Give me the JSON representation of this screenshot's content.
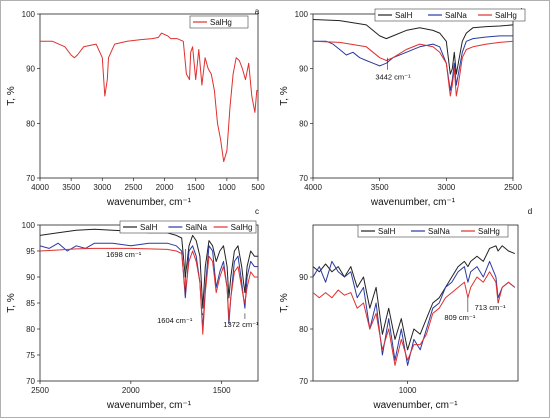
{
  "chart_data": [
    {
      "id": "a",
      "type": "line",
      "panel_letter": "a",
      "xlabel": "wavenumber, cm⁻¹",
      "ylabel": "T, %",
      "xlim": [
        4000,
        500
      ],
      "ylim": [
        70,
        100
      ],
      "xticks": [
        4000,
        3500,
        3000,
        2500,
        2000,
        1500,
        1000,
        500
      ],
      "yticks": [
        70,
        80,
        90,
        100
      ],
      "legend": "top-right",
      "series": [
        {
          "name": "SalHg",
          "color": "#e03030",
          "x": [
            4000,
            3800,
            3600,
            3500,
            3450,
            3400,
            3300,
            3100,
            3000,
            2960,
            2920,
            2900,
            2800,
            2600,
            2400,
            2200,
            2100,
            2050,
            1950,
            1900,
            1800,
            1700,
            1650,
            1600,
            1580,
            1550,
            1500,
            1450,
            1400,
            1350,
            1300,
            1250,
            1200,
            1150,
            1100,
            1050,
            1000,
            950,
            900,
            850,
            800,
            750,
            700,
            650,
            600,
            550,
            520,
            500
          ],
          "y": [
            95,
            95,
            94,
            92.5,
            92,
            92.5,
            94,
            94.5,
            92,
            85,
            88,
            92,
            94.5,
            95,
            95.3,
            95.5,
            95.7,
            96.5,
            96,
            95.5,
            95.5,
            95,
            89,
            88,
            93,
            94,
            88,
            93.5,
            87,
            92,
            90,
            89,
            86,
            80,
            77,
            73,
            75,
            83,
            89,
            92,
            91.5,
            90,
            88,
            91,
            85,
            82,
            86,
            86
          ]
        }
      ]
    },
    {
      "id": "b",
      "type": "line",
      "panel_letter": "b",
      "xlabel": "wavenumber, cm⁻¹",
      "ylabel": "T, %",
      "xlim": [
        4000,
        2500
      ],
      "ylim": [
        70,
        100
      ],
      "xticks": [
        4000,
        3500,
        3000,
        2500
      ],
      "yticks": [
        70,
        80,
        90,
        100
      ],
      "legend": "top-right",
      "annotations": [
        {
          "text": "3442 cm⁻¹",
          "x": 3442,
          "y": 92
        }
      ],
      "series": [
        {
          "name": "SalH",
          "color": "#222222",
          "x": [
            4000,
            3800,
            3600,
            3500,
            3450,
            3400,
            3300,
            3200,
            3100,
            3050,
            3000,
            2970,
            2955,
            2940,
            2925,
            2910,
            2880,
            2850,
            2800,
            2700,
            2600,
            2500
          ],
          "y": [
            99,
            98.8,
            98,
            96,
            95.5,
            96,
            97,
            97.5,
            97,
            96.5,
            95,
            89,
            90,
            93,
            89,
            91,
            95,
            96.5,
            97.5,
            97.7,
            97.8,
            98
          ]
        },
        {
          "name": "SalNa",
          "color": "#2a3aa0",
          "x": [
            4000,
            3900,
            3850,
            3800,
            3750,
            3700,
            3650,
            3600,
            3550,
            3500,
            3450,
            3400,
            3300,
            3200,
            3100,
            3050,
            3000,
            2970,
            2955,
            2940,
            2925,
            2910,
            2880,
            2850,
            2800,
            2700,
            2600,
            2500
          ],
          "y": [
            95,
            95,
            94.5,
            93.5,
            92.5,
            93,
            92,
            91.5,
            91,
            90.5,
            91,
            92,
            93,
            94,
            94.5,
            94,
            91,
            86,
            88,
            91,
            87,
            89,
            93,
            95,
            95.5,
            95.8,
            96,
            96
          ]
        },
        {
          "name": "SalHg",
          "color": "#e03030",
          "x": [
            4000,
            3800,
            3600,
            3500,
            3450,
            3400,
            3300,
            3200,
            3100,
            3050,
            3000,
            2970,
            2955,
            2940,
            2925,
            2910,
            2880,
            2850,
            2800,
            2700,
            2600,
            2500
          ],
          "y": [
            95,
            94.8,
            94,
            92,
            91.5,
            92,
            93.5,
            94.5,
            94,
            93,
            91,
            85,
            87,
            90,
            85,
            87,
            92,
            93.5,
            94,
            94.5,
            94.8,
            95
          ]
        }
      ]
    },
    {
      "id": "c",
      "type": "line",
      "panel_letter": "c",
      "xlabel": "wavenumber, cm⁻¹",
      "ylabel": "T, %",
      "xlim": [
        2500,
        1300
      ],
      "ylim": [
        70,
        100
      ],
      "xticks": [
        2500,
        2000,
        1500
      ],
      "yticks": [
        70,
        75,
        80,
        85,
        90,
        95,
        100
      ],
      "legend": "top-right",
      "annotations": [
        {
          "text": "1698 cm⁻¹",
          "x": 1698,
          "y": 87
        },
        {
          "text": "1604 cm⁻¹",
          "x": 1604,
          "y": 83
        },
        {
          "text": "1372 cm⁻¹",
          "x": 1372,
          "y": 83
        }
      ],
      "series": [
        {
          "name": "SalH",
          "color": "#222222",
          "x": [
            2500,
            2400,
            2300,
            2200,
            2100,
            2000,
            1900,
            1800,
            1750,
            1720,
            1700,
            1690,
            1680,
            1660,
            1640,
            1620,
            1604,
            1590,
            1570,
            1550,
            1530,
            1510,
            1490,
            1470,
            1460,
            1450,
            1430,
            1410,
            1390,
            1380,
            1372,
            1360,
            1340,
            1320,
            1300
          ],
          "y": [
            98,
            98.5,
            99,
            99.2,
            99,
            98.8,
            98.5,
            98.5,
            98,
            97.5,
            90,
            93,
            96,
            98,
            97,
            94,
            84,
            92,
            97,
            96,
            93,
            95,
            96,
            92,
            86,
            90,
            95,
            96,
            92,
            89,
            87,
            92,
            95,
            94,
            94
          ]
        },
        {
          "name": "SalNa",
          "color": "#2a3aa0",
          "x": [
            2500,
            2450,
            2400,
            2350,
            2300,
            2250,
            2200,
            2100,
            2000,
            1900,
            1800,
            1750,
            1720,
            1700,
            1690,
            1680,
            1660,
            1640,
            1620,
            1604,
            1590,
            1570,
            1550,
            1530,
            1510,
            1490,
            1470,
            1460,
            1450,
            1430,
            1410,
            1390,
            1380,
            1372,
            1360,
            1340,
            1320,
            1300
          ],
          "y": [
            96,
            95.5,
            96.5,
            95,
            96,
            95.5,
            96.5,
            96.5,
            96,
            96.5,
            96.5,
            96,
            95,
            86,
            90,
            95,
            96,
            94,
            89,
            80,
            88,
            96,
            95,
            88,
            91,
            93,
            88,
            81,
            86,
            93,
            94,
            89,
            86,
            84,
            90,
            93,
            92,
            92
          ]
        },
        {
          "name": "SalHg",
          "color": "#e03030",
          "x": [
            2500,
            2400,
            2300,
            2200,
            2100,
            2000,
            1900,
            1800,
            1750,
            1720,
            1700,
            1690,
            1680,
            1660,
            1640,
            1620,
            1604,
            1590,
            1570,
            1550,
            1530,
            1510,
            1490,
            1470,
            1460,
            1450,
            1430,
            1410,
            1390,
            1380,
            1372,
            1360,
            1340,
            1320,
            1300
          ],
          "y": [
            95,
            95.2,
            95.4,
            95.5,
            95.5,
            95.5,
            95.4,
            95.3,
            95,
            94.5,
            87,
            90,
            93,
            95,
            93,
            89,
            79,
            87,
            94,
            93,
            87,
            90,
            92,
            88,
            82,
            86,
            91,
            92,
            88,
            86,
            85,
            88,
            91,
            90,
            90
          ]
        }
      ]
    },
    {
      "id": "d",
      "type": "line",
      "panel_letter": "d",
      "xlabel": "wavenumber, cm⁻¹",
      "ylabel": "T, %",
      "xlim": [
        1300,
        650
      ],
      "ylim": [
        70,
        100
      ],
      "xticks": [
        1000
      ],
      "yticks": [
        70,
        80,
        90
      ],
      "legend": "top-right",
      "annotations": [
        {
          "text": "809 cm⁻¹",
          "x": 809,
          "y": 86
        },
        {
          "text": "713 cm⁻¹",
          "x": 713,
          "y": 85
        }
      ],
      "series": [
        {
          "name": "SalH",
          "color": "#222222",
          "x": [
            1300,
            1280,
            1260,
            1240,
            1220,
            1200,
            1180,
            1160,
            1140,
            1120,
            1100,
            1080,
            1060,
            1040,
            1020,
            1000,
            980,
            960,
            940,
            920,
            900,
            880,
            860,
            840,
            820,
            809,
            800,
            780,
            760,
            740,
            720,
            713,
            700,
            680,
            660
          ],
          "y": [
            92,
            91,
            92.5,
            91,
            92,
            90,
            92,
            88,
            90,
            84,
            88,
            79,
            84,
            78,
            82,
            76,
            80,
            79,
            82,
            85,
            86,
            88,
            90,
            92,
            93,
            92,
            93,
            94,
            93,
            95.5,
            96,
            95,
            96,
            95,
            94.5
          ]
        },
        {
          "name": "SalNa",
          "color": "#2a3aa0",
          "x": [
            1300,
            1280,
            1260,
            1240,
            1220,
            1200,
            1180,
            1160,
            1140,
            1120,
            1100,
            1080,
            1060,
            1040,
            1020,
            1000,
            980,
            960,
            940,
            920,
            900,
            880,
            860,
            840,
            820,
            809,
            800,
            780,
            760,
            740,
            720,
            713,
            700,
            680,
            660
          ],
          "y": [
            90,
            92,
            89,
            93,
            91,
            90,
            91,
            86,
            88,
            80,
            85,
            75,
            82,
            74,
            80,
            73,
            78,
            76,
            80,
            84,
            85,
            88,
            89,
            91,
            92,
            89,
            91,
            92,
            90,
            93,
            90,
            86,
            88,
            89,
            88
          ]
        },
        {
          "name": "SalHg",
          "color": "#e03030",
          "x": [
            1300,
            1280,
            1260,
            1240,
            1220,
            1200,
            1180,
            1160,
            1140,
            1120,
            1100,
            1080,
            1060,
            1040,
            1020,
            1000,
            980,
            960,
            940,
            920,
            900,
            880,
            860,
            840,
            820,
            809,
            800,
            780,
            760,
            740,
            720,
            713,
            700,
            680,
            660
          ],
          "y": [
            87,
            86,
            87,
            86,
            87.5,
            86.5,
            87,
            84,
            85,
            80,
            83,
            76,
            80,
            73,
            78,
            74,
            77,
            77,
            79,
            83,
            84,
            86,
            87,
            88,
            89,
            86,
            88,
            90,
            89,
            91,
            89,
            85,
            88,
            89,
            88
          ]
        }
      ]
    }
  ]
}
